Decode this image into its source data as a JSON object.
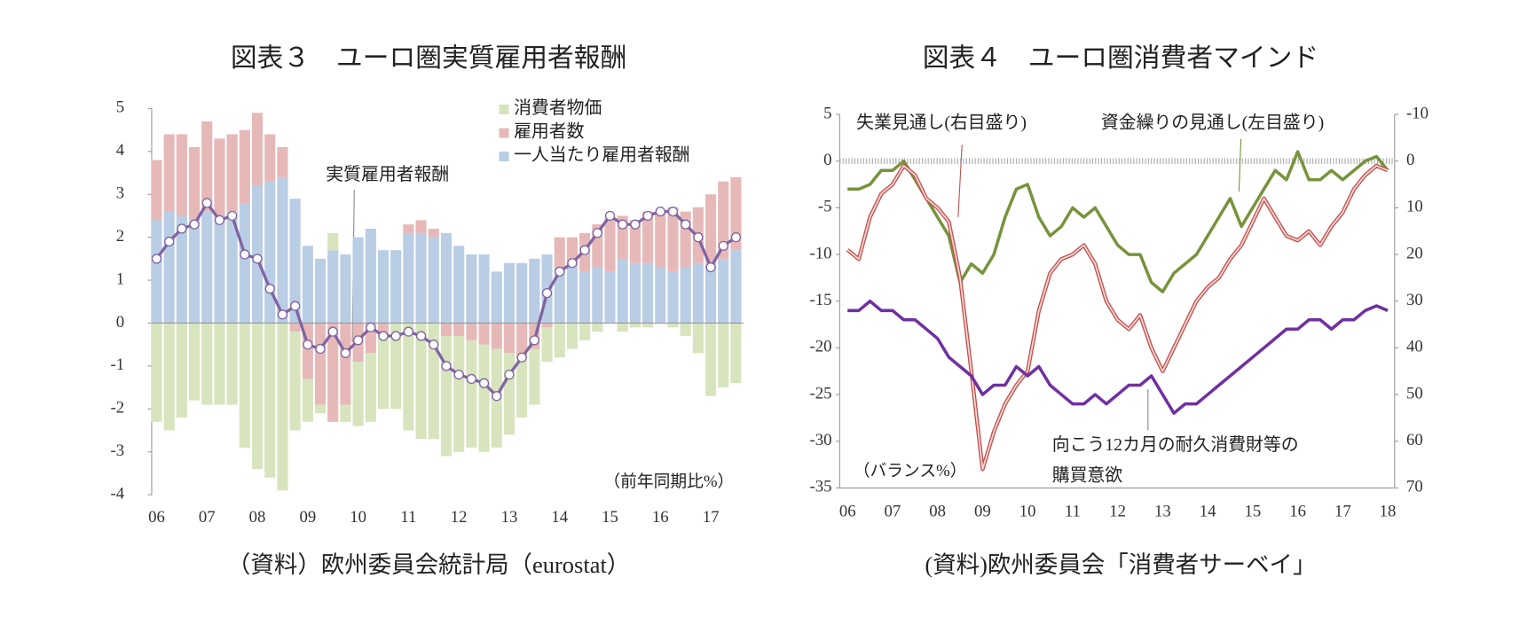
{
  "chart_data": [
    {
      "type": "bar",
      "stacked": true,
      "title": "図表３　ユーロ圏実質雇用者報酬",
      "source": "（資料）欧州委員会統計局（eurostat）",
      "note": "（前年同期比%）",
      "categories": [
        "06",
        null,
        null,
        null,
        "07",
        null,
        null,
        null,
        "08",
        null,
        null,
        null,
        "09",
        null,
        null,
        null,
        "10",
        null,
        null,
        null,
        "11",
        null,
        null,
        null,
        "12",
        null,
        null,
        null,
        "13",
        null,
        null,
        null,
        "14",
        null,
        null,
        null,
        "15",
        null,
        null,
        null,
        "16",
        null,
        null,
        null,
        "17",
        null,
        null
      ],
      "series": [
        {
          "name": "消費者物価",
          "color": "#d7e4bd",
          "values": [
            -2.3,
            -2.5,
            -2.2,
            -1.8,
            -1.9,
            -1.9,
            -1.9,
            -2.9,
            -3.4,
            -3.6,
            -3.9,
            -2.3,
            -1.0,
            -0.2,
            0.4,
            -0.4,
            -1.5,
            -1.6,
            -1.7,
            -2.0,
            -2.5,
            -2.7,
            -2.7,
            -2.8,
            -2.7,
            -2.5,
            -2.5,
            -2.3,
            -1.9,
            -1.4,
            -1.3,
            -0.8,
            -0.8,
            -0.6,
            -0.4,
            -0.2,
            0.1,
            -0.2,
            -0.1,
            -0.1,
            0.0,
            -0.1,
            -0.3,
            -0.7,
            -1.7,
            -1.5,
            -1.4
          ]
        },
        {
          "name": "雇用者数",
          "color": "#e6b9b8",
          "values": [
            1.4,
            1.8,
            1.9,
            1.7,
            2.1,
            1.8,
            1.8,
            1.7,
            1.7,
            1.1,
            0.7,
            -0.2,
            -1.3,
            -1.9,
            -2.3,
            -1.9,
            -0.9,
            -0.7,
            -0.3,
            0.0,
            0.2,
            0.3,
            0.2,
            -0.3,
            -0.3,
            -0.4,
            -0.5,
            -0.6,
            -0.7,
            -0.8,
            -0.6,
            -0.1,
            0.7,
            0.7,
            0.9,
            1.0,
            1.2,
            1.0,
            1.0,
            1.2,
            1.3,
            1.5,
            1.3,
            1.3,
            1.6,
            1.8,
            1.7
          ]
        },
        {
          "name": "一人当たり雇用者報酬",
          "color": "#b9cde5",
          "values": [
            2.4,
            2.6,
            2.5,
            2.4,
            2.6,
            2.5,
            2.6,
            2.8,
            3.2,
            3.3,
            3.4,
            2.9,
            1.8,
            1.5,
            1.7,
            1.6,
            2.0,
            2.2,
            1.7,
            1.7,
            2.1,
            2.1,
            2.0,
            2.1,
            1.8,
            1.6,
            1.6,
            1.2,
            1.4,
            1.4,
            1.5,
            1.6,
            1.3,
            1.3,
            1.2,
            1.3,
            1.2,
            1.5,
            1.4,
            1.4,
            1.3,
            1.2,
            1.3,
            1.4,
            1.4,
            1.5,
            1.7
          ]
        },
        {
          "name": "実質雇用者報酬",
          "type": "line",
          "color": "#8064a2",
          "values": [
            1.5,
            1.9,
            2.2,
            2.3,
            2.8,
            2.4,
            2.5,
            1.6,
            1.5,
            0.8,
            0.2,
            0.4,
            -0.5,
            -0.6,
            -0.2,
            -0.7,
            -0.4,
            -0.1,
            -0.3,
            -0.3,
            -0.2,
            -0.3,
            -0.5,
            -1.0,
            -1.2,
            -1.3,
            -1.4,
            -1.7,
            -1.2,
            -0.8,
            -0.4,
            0.7,
            1.2,
            1.4,
            1.7,
            2.1,
            2.5,
            2.3,
            2.3,
            2.5,
            2.6,
            2.6,
            2.3,
            2.0,
            1.3,
            1.8,
            2.0
          ]
        }
      ],
      "ylim": [
        -4,
        5
      ],
      "yticks": [
        -4,
        -3,
        -2,
        -1,
        0,
        1,
        2,
        3,
        4,
        5
      ]
    },
    {
      "type": "line",
      "title": "図表４　ユーロ圏消費者マインド",
      "source": "(資料)欧州委員会「消費者サーベイ」",
      "note": "（バランス%）",
      "categories": [
        "06",
        null,
        null,
        null,
        "07",
        null,
        null,
        null,
        "08",
        null,
        null,
        null,
        "09",
        null,
        null,
        null,
        "10",
        null,
        null,
        null,
        "11",
        null,
        null,
        null,
        "12",
        null,
        null,
        null,
        "13",
        null,
        null,
        null,
        "14",
        null,
        null,
        null,
        "15",
        null,
        null,
        null,
        "16",
        null,
        null,
        null,
        "17",
        null,
        null,
        null,
        "18"
      ],
      "series": [
        {
          "name": "資金繰りの見通し(左目盛り)",
          "color": "#77933c",
          "values": [
            -3,
            -3,
            -2.5,
            -1,
            -1,
            0,
            -2,
            -4,
            -6,
            -8,
            -13,
            -11,
            -12,
            -10,
            -6,
            -3,
            -2.5,
            -6,
            -8,
            -7,
            -5,
            -6,
            -5,
            -7,
            -9,
            -10,
            -10,
            -13,
            -14,
            -12,
            -11,
            -10,
            -8,
            -6,
            -4,
            -7,
            -5,
            -3,
            -1,
            -2,
            1,
            -2,
            -2,
            -1,
            -2,
            -1,
            0,
            0.5,
            -1
          ]
        },
        {
          "name": "失業見通し(右目盛り)",
          "axis": "y2",
          "style": "double",
          "color": "#c0504d",
          "values": [
            19,
            21,
            12,
            7,
            5,
            1,
            3,
            8,
            10,
            13,
            25,
            45,
            66,
            58,
            52,
            48,
            45,
            32,
            24,
            21,
            20,
            18,
            22,
            30,
            34,
            36,
            33,
            40,
            45,
            40,
            35,
            30,
            27,
            25,
            21,
            18,
            13,
            8,
            12,
            16,
            17,
            15,
            18,
            14,
            11,
            6,
            3,
            1,
            2
          ]
        },
        {
          "name": "向こう12カ月の耐久消費財等の\n購買意欲",
          "color": "#7030a0",
          "values": [
            -16,
            -16,
            -15,
            -16,
            -16,
            -17,
            -17,
            -18,
            -19,
            -21,
            -22,
            -23,
            -25,
            -24,
            -24,
            -22,
            -23,
            -22,
            -24,
            -25,
            -26,
            -26,
            -25,
            -26,
            -25,
            -24,
            -24,
            -23,
            -25,
            -27,
            -26,
            -26,
            -25,
            -24,
            -23,
            -22,
            -21,
            -20,
            -19,
            -18,
            -18,
            -17,
            -17,
            -18,
            -17,
            -17,
            -16,
            -15.5,
            -16
          ]
        }
      ],
      "ylim": [
        -35,
        5
      ],
      "yticks": [
        -35,
        -30,
        -25,
        -20,
        -15,
        -10,
        -5,
        0,
        5
      ],
      "y2lim": [
        -10,
        70
      ],
      "y2ticks": [
        -10,
        0,
        10,
        20,
        30,
        40,
        50,
        60,
        70
      ],
      "y2_reversed": true
    }
  ]
}
